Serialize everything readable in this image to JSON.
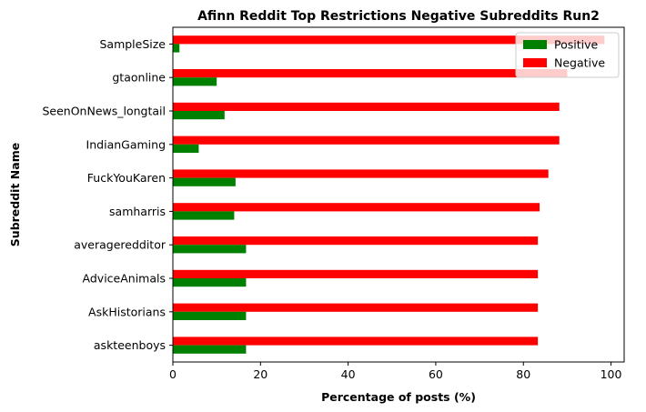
{
  "chart_data": {
    "type": "bar",
    "orientation": "horizontal",
    "title": "Afinn Reddit Top Restrictions Negative Subreddits Run2",
    "xlabel": "Percentage of posts (%)",
    "ylabel": "Subreddit Name",
    "xlim": [
      0,
      103
    ],
    "xticks": [
      0,
      20,
      40,
      60,
      80,
      100
    ],
    "grid": false,
    "legend_position": "top-right",
    "categories": [
      "SampleSize",
      "gtaonline",
      "SeenOnNews_longtail",
      "IndianGaming",
      "FuckYouKaren",
      "samharris",
      "averageredditor",
      "AdviceAnimals",
      "AskHistorians",
      "askteenboys"
    ],
    "series": [
      {
        "name": "Positive",
        "color": "#008000",
        "values": [
          1.5,
          10.0,
          11.8,
          5.9,
          14.3,
          14.0,
          16.7,
          16.7,
          16.7,
          16.7
        ]
      },
      {
        "name": "Negative",
        "color": "#ff0000",
        "values": [
          98.5,
          90.0,
          88.2,
          88.2,
          85.7,
          83.7,
          83.3,
          83.3,
          83.3,
          83.3
        ]
      }
    ]
  }
}
